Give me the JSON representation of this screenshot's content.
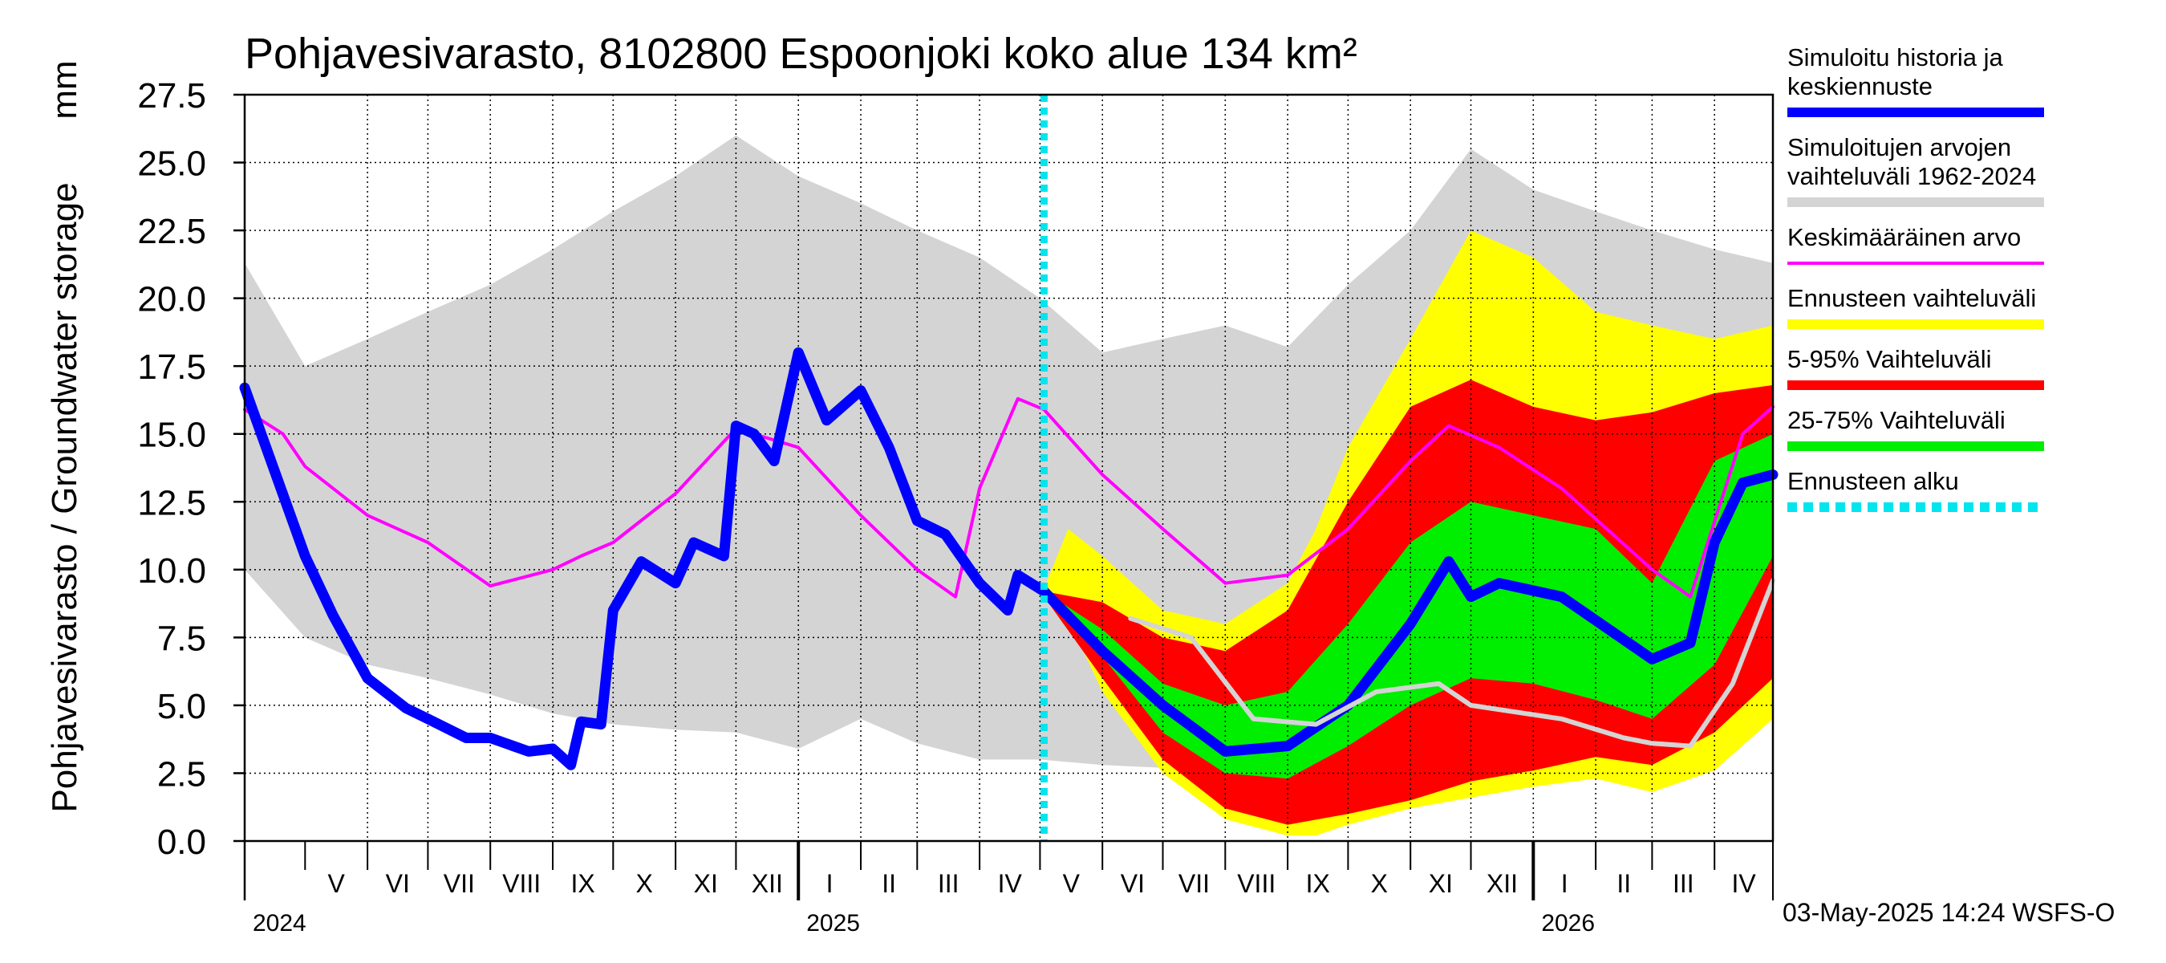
{
  "chart_data": {
    "type": "area",
    "title": "Pohjavesivarasto, 8102800 Espoonjoki koko alue 134 km²",
    "ylabel": "Pohjavesivarasto / Groundwater storage",
    "yunit": "mm",
    "ylim": [
      0,
      27.5
    ],
    "yticks": [
      "0.0",
      "2.5",
      "5.0",
      "7.5",
      "10.0",
      "12.5",
      "15.0",
      "17.5",
      "20.0",
      "22.5",
      "25.0",
      "27.5"
    ],
    "xlim": [
      "2024-04-01",
      "2026-04-30"
    ],
    "grid": true,
    "forecast_start": "2025-05-03",
    "months": [
      {
        "label": "V",
        "start": "2024-05-01",
        "end": "2024-05-31"
      },
      {
        "label": "VI",
        "start": "2024-06-01",
        "end": "2024-06-30"
      },
      {
        "label": "VII",
        "start": "2024-07-01",
        "end": "2024-07-31"
      },
      {
        "label": "VIII",
        "start": "2024-08-01",
        "end": "2024-08-31"
      },
      {
        "label": "IX",
        "start": "2024-09-01",
        "end": "2024-09-30"
      },
      {
        "label": "X",
        "start": "2024-10-01",
        "end": "2024-10-31"
      },
      {
        "label": "XI",
        "start": "2024-11-01",
        "end": "2024-11-30"
      },
      {
        "label": "XII",
        "start": "2024-12-01",
        "end": "2024-12-31"
      },
      {
        "label": "I",
        "start": "2025-01-01",
        "end": "2025-01-31"
      },
      {
        "label": "II",
        "start": "2025-02-01",
        "end": "2025-02-28"
      },
      {
        "label": "III",
        "start": "2025-03-01",
        "end": "2025-03-31"
      },
      {
        "label": "IV",
        "start": "2025-04-01",
        "end": "2025-04-30"
      },
      {
        "label": "V",
        "start": "2025-05-01",
        "end": "2025-05-31"
      },
      {
        "label": "VI",
        "start": "2025-06-01",
        "end": "2025-06-30"
      },
      {
        "label": "VII",
        "start": "2025-07-01",
        "end": "2025-07-31"
      },
      {
        "label": "VIII",
        "start": "2025-08-01",
        "end": "2025-08-31"
      },
      {
        "label": "IX",
        "start": "2025-09-01",
        "end": "2025-09-30"
      },
      {
        "label": "X",
        "start": "2025-10-01",
        "end": "2025-10-31"
      },
      {
        "label": "XI",
        "start": "2025-11-01",
        "end": "2025-11-30"
      },
      {
        "label": "XII",
        "start": "2025-12-01",
        "end": "2025-12-31"
      },
      {
        "label": "I",
        "start": "2026-01-01",
        "end": "2026-01-31"
      },
      {
        "label": "II",
        "start": "2026-02-01",
        "end": "2026-02-28"
      },
      {
        "label": "III",
        "start": "2026-03-01",
        "end": "2026-03-31"
      },
      {
        "label": "IV",
        "start": "2026-04-01",
        "end": "2026-04-30"
      }
    ],
    "years": [
      {
        "label": "2024",
        "date": "2024-04-01"
      },
      {
        "label": "2025",
        "date": "2025-01-01"
      },
      {
        "label": "2026",
        "date": "2026-01-01"
      }
    ],
    "series": [
      {
        "name": "Simuloitujen arvojen vaihteluväli 1962-2024",
        "kind": "band",
        "color": "#d4d4d4",
        "points": [
          [
            "2024-04-01",
            10.0,
            21.3
          ],
          [
            "2024-05-01",
            7.5,
            17.5
          ],
          [
            "2024-06-01",
            6.5,
            18.5
          ],
          [
            "2024-07-01",
            6.0,
            19.5
          ],
          [
            "2024-08-01",
            5.4,
            20.5
          ],
          [
            "2024-09-01",
            4.7,
            21.8
          ],
          [
            "2024-10-01",
            4.3,
            23.2
          ],
          [
            "2024-11-01",
            4.1,
            24.5
          ],
          [
            "2024-12-01",
            4.0,
            26.0
          ],
          [
            "2025-01-01",
            3.4,
            24.5
          ],
          [
            "2025-02-01",
            4.5,
            23.5
          ],
          [
            "2025-03-01",
            3.6,
            22.5
          ],
          [
            "2025-04-01",
            3.0,
            21.5
          ],
          [
            "2025-05-01",
            3.0,
            20.0
          ],
          [
            "2025-06-01",
            2.8,
            18.0
          ],
          [
            "2025-07-01",
            2.7,
            18.5
          ],
          [
            "2025-08-01",
            2.7,
            19.0
          ],
          [
            "2025-09-01",
            3.0,
            18.2
          ],
          [
            "2025-10-01",
            3.3,
            20.5
          ],
          [
            "2025-11-01",
            3.6,
            22.5
          ],
          [
            "2025-12-01",
            4.0,
            25.5
          ],
          [
            "2026-01-01",
            4.4,
            24.0
          ],
          [
            "2026-02-01",
            4.8,
            23.2
          ],
          [
            "2026-03-01",
            6.5,
            22.5
          ],
          [
            "2026-04-01",
            8.5,
            21.8
          ],
          [
            "2026-04-30",
            10.0,
            21.3
          ]
        ]
      },
      {
        "name": "Ennusteen vaihteluväli",
        "kind": "band",
        "color": "#ffff00",
        "points": [
          [
            "2025-05-03",
            9.0,
            9.3
          ],
          [
            "2025-05-15",
            8.2,
            11.5
          ],
          [
            "2025-06-01",
            5.5,
            10.5
          ],
          [
            "2025-07-01",
            2.5,
            8.5
          ],
          [
            "2025-08-01",
            0.8,
            8.0
          ],
          [
            "2025-09-01",
            0.2,
            9.5
          ],
          [
            "2025-09-15",
            0.2,
            11.5
          ],
          [
            "2025-10-01",
            0.6,
            14.5
          ],
          [
            "2025-11-01",
            1.2,
            18.5
          ],
          [
            "2025-12-01",
            1.6,
            22.5
          ],
          [
            "2026-01-01",
            2.0,
            21.5
          ],
          [
            "2026-02-01",
            2.3,
            19.5
          ],
          [
            "2026-03-01",
            1.8,
            19.0
          ],
          [
            "2026-04-01",
            2.6,
            18.5
          ],
          [
            "2026-04-30",
            4.5,
            19.0
          ]
        ]
      },
      {
        "name": "5-95% Vaihteluväli",
        "kind": "band",
        "color": "#ff0000",
        "points": [
          [
            "2025-05-03",
            9.0,
            9.2
          ],
          [
            "2025-06-01",
            6.0,
            8.8
          ],
          [
            "2025-07-01",
            3.0,
            7.5
          ],
          [
            "2025-08-01",
            1.2,
            7.0
          ],
          [
            "2025-09-01",
            0.6,
            8.5
          ],
          [
            "2025-10-01",
            1.0,
            12.5
          ],
          [
            "2025-11-01",
            1.5,
            16.0
          ],
          [
            "2025-12-01",
            2.2,
            17.0
          ],
          [
            "2026-01-01",
            2.6,
            16.0
          ],
          [
            "2026-02-01",
            3.1,
            15.5
          ],
          [
            "2026-03-01",
            2.8,
            15.8
          ],
          [
            "2026-04-01",
            4.0,
            16.5
          ],
          [
            "2026-04-30",
            6.0,
            16.8
          ]
        ]
      },
      {
        "name": "25-75% Vaihteluväli",
        "kind": "band",
        "color": "#00ee00",
        "points": [
          [
            "2025-05-03",
            9.1,
            9.2
          ],
          [
            "2025-06-01",
            6.8,
            7.8
          ],
          [
            "2025-07-01",
            4.0,
            5.8
          ],
          [
            "2025-08-01",
            2.5,
            5.0
          ],
          [
            "2025-09-01",
            2.3,
            5.5
          ],
          [
            "2025-10-01",
            3.5,
            8.0
          ],
          [
            "2025-11-01",
            5.0,
            11.0
          ],
          [
            "2025-12-01",
            6.0,
            12.5
          ],
          [
            "2026-01-01",
            5.8,
            12.0
          ],
          [
            "2026-02-01",
            5.2,
            11.5
          ],
          [
            "2026-03-01",
            4.5,
            9.5
          ],
          [
            "2026-04-01",
            6.5,
            14.0
          ],
          [
            "2026-04-30",
            10.5,
            15.0
          ]
        ]
      },
      {
        "name": "Keskimääräinen arvo",
        "kind": "line",
        "color": "#ff00ff",
        "points": [
          [
            "2024-04-01",
            15.9
          ],
          [
            "2024-04-20",
            15.0
          ],
          [
            "2024-05-01",
            13.8
          ],
          [
            "2024-06-01",
            12.0
          ],
          [
            "2024-07-01",
            11.0
          ],
          [
            "2024-08-01",
            9.4
          ],
          [
            "2024-09-01",
            10.0
          ],
          [
            "2024-09-15",
            10.5
          ],
          [
            "2024-10-01",
            11.0
          ],
          [
            "2024-11-01",
            12.8
          ],
          [
            "2024-12-01",
            15.2
          ],
          [
            "2025-01-01",
            14.5
          ],
          [
            "2025-02-01",
            12.0
          ],
          [
            "2025-03-01",
            10.0
          ],
          [
            "2025-03-20",
            9.0
          ],
          [
            "2025-04-01",
            13.0
          ],
          [
            "2025-04-20",
            16.3
          ],
          [
            "2025-05-03",
            15.9
          ],
          [
            "2025-06-01",
            13.5
          ],
          [
            "2025-07-01",
            11.5
          ],
          [
            "2025-08-01",
            9.5
          ],
          [
            "2025-09-01",
            9.8
          ],
          [
            "2025-10-01",
            11.5
          ],
          [
            "2025-11-01",
            14.0
          ],
          [
            "2025-11-20",
            15.3
          ],
          [
            "2025-12-15",
            14.5
          ],
          [
            "2026-01-15",
            13.0
          ],
          [
            "2026-03-01",
            10.0
          ],
          [
            "2026-03-20",
            9.0
          ],
          [
            "2026-04-15",
            15.0
          ],
          [
            "2026-04-30",
            16.0
          ]
        ]
      },
      {
        "name": "Simuloitu historia ja keskiennuste",
        "kind": "line",
        "color": "#0000ff",
        "points": [
          [
            "2024-04-01",
            16.7
          ],
          [
            "2024-05-01",
            10.5
          ],
          [
            "2024-05-15",
            8.3
          ],
          [
            "2024-06-01",
            6.0
          ],
          [
            "2024-06-20",
            4.9
          ],
          [
            "2024-07-01",
            4.5
          ],
          [
            "2024-07-20",
            3.8
          ],
          [
            "2024-08-01",
            3.8
          ],
          [
            "2024-08-20",
            3.3
          ],
          [
            "2024-09-01",
            3.4
          ],
          [
            "2024-09-10",
            2.8
          ],
          [
            "2024-09-15",
            4.4
          ],
          [
            "2024-09-25",
            4.3
          ],
          [
            "2024-10-01",
            8.5
          ],
          [
            "2024-10-15",
            10.3
          ],
          [
            "2024-11-01",
            9.5
          ],
          [
            "2024-11-10",
            11.0
          ],
          [
            "2024-11-25",
            10.5
          ],
          [
            "2024-12-01",
            15.3
          ],
          [
            "2024-12-10",
            15.0
          ],
          [
            "2024-12-20",
            14.0
          ],
          [
            "2025-01-01",
            18.0
          ],
          [
            "2025-01-15",
            15.5
          ],
          [
            "2025-02-01",
            16.6
          ],
          [
            "2025-02-15",
            14.5
          ],
          [
            "2025-03-01",
            11.8
          ],
          [
            "2025-03-15",
            11.3
          ],
          [
            "2025-04-01",
            9.5
          ],
          [
            "2025-04-15",
            8.5
          ],
          [
            "2025-04-20",
            9.8
          ],
          [
            "2025-05-03",
            9.2
          ],
          [
            "2025-06-01",
            7.0
          ],
          [
            "2025-07-01",
            5.0
          ],
          [
            "2025-08-01",
            3.3
          ],
          [
            "2025-09-01",
            3.5
          ],
          [
            "2025-10-01",
            5.0
          ],
          [
            "2025-11-01",
            8.0
          ],
          [
            "2025-11-20",
            10.3
          ],
          [
            "2025-12-01",
            9.0
          ],
          [
            "2025-12-15",
            9.5
          ],
          [
            "2026-01-15",
            9.0
          ],
          [
            "2026-03-01",
            6.7
          ],
          [
            "2026-03-20",
            7.3
          ],
          [
            "2026-04-01",
            11.0
          ],
          [
            "2026-04-15",
            13.2
          ],
          [
            "2026-04-30",
            13.5
          ]
        ]
      },
      {
        "name": "",
        "kind": "line",
        "color": "#d4d4d4",
        "points": [
          [
            "2025-06-15",
            8.2
          ],
          [
            "2025-07-15",
            7.5
          ],
          [
            "2025-08-15",
            4.5
          ],
          [
            "2025-09-15",
            4.3
          ],
          [
            "2025-10-15",
            5.5
          ],
          [
            "2025-11-15",
            5.8
          ],
          [
            "2025-12-01",
            5.0
          ],
          [
            "2026-01-15",
            4.5
          ],
          [
            "2026-02-15",
            3.8
          ],
          [
            "2026-03-01",
            3.6
          ],
          [
            "2026-03-20",
            3.5
          ],
          [
            "2026-04-10",
            5.8
          ],
          [
            "2026-04-30",
            9.6
          ]
        ]
      }
    ],
    "legend": {
      "placement": "right",
      "entries": [
        {
          "label_lines": [
            "Simuloitu historia ja",
            "keskiennuste"
          ],
          "color": "#0000ff",
          "style": "solid-thick"
        },
        {
          "label_lines": [
            "Simuloitujen arvojen",
            "vaihteluväli 1962-2024"
          ],
          "color": "#d4d4d4",
          "style": "solid-thick"
        },
        {
          "label_lines": [
            "Keskimääräinen arvo"
          ],
          "color": "#ff00ff",
          "style": "solid-thin"
        },
        {
          "label_lines": [
            "Ennusteen vaihteluväli"
          ],
          "color": "#ffff00",
          "style": "solid-thick"
        },
        {
          "label_lines": [
            "5-95% Vaihteluväli"
          ],
          "color": "#ff0000",
          "style": "solid-thick"
        },
        {
          "label_lines": [
            "25-75% Vaihteluväli"
          ],
          "color": "#00ee00",
          "style": "solid-thick"
        },
        {
          "label_lines": [
            "Ennusteen alku"
          ],
          "color": "#00e5ee",
          "style": "dotted"
        }
      ]
    },
    "timestamp": "03-May-2025 14:24 WSFS-O"
  }
}
